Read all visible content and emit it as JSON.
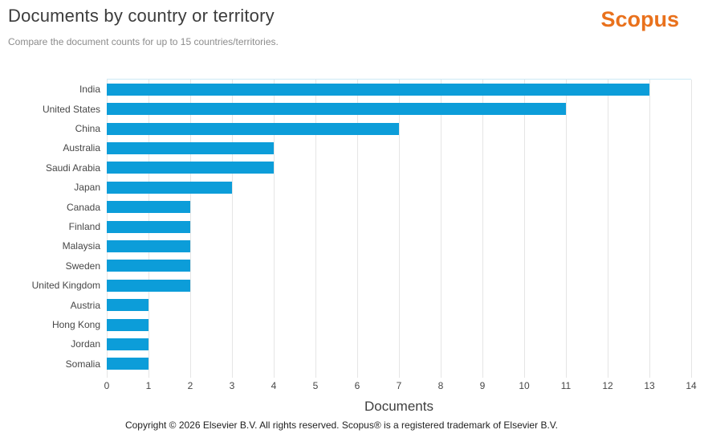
{
  "header": {
    "title": "Documents by country or territory",
    "subtitle": "Compare the document counts for up to 15 countries/territories.",
    "logo_text": "Scopus"
  },
  "chart_data": {
    "type": "bar",
    "orientation": "horizontal",
    "title": "Documents by country or territory",
    "categories": [
      "India",
      "United States",
      "China",
      "Australia",
      "Saudi Arabia",
      "Japan",
      "Canada",
      "Finland",
      "Malaysia",
      "Sweden",
      "United Kingdom",
      "Austria",
      "Hong Kong",
      "Jordan",
      "Somalia"
    ],
    "values": [
      13,
      11,
      7,
      4,
      4,
      3,
      2,
      2,
      2,
      2,
      2,
      1,
      1,
      1,
      1
    ],
    "xlabel": "Documents",
    "ylabel": "",
    "xlim": [
      0,
      14
    ],
    "xticks": [
      0,
      1,
      2,
      3,
      4,
      5,
      6,
      7,
      8,
      9,
      10,
      11,
      12,
      13,
      14
    ],
    "grid": "vertical-only",
    "legend": "none",
    "bar_color": "#0C9DD9"
  },
  "colors": {
    "bar": "#0C9DD9",
    "logo_orange": "#E9711C",
    "gridline": "#E5E5E5",
    "plot_top_border": "#CDE9F5",
    "title_text": "#3C3C3C",
    "subtitle_text": "#8C8C8C"
  },
  "footer": {
    "copyright": "Copyright © 2026 Elsevier B.V. All rights reserved. Scopus® is a registered trademark of Elsevier B.V."
  }
}
